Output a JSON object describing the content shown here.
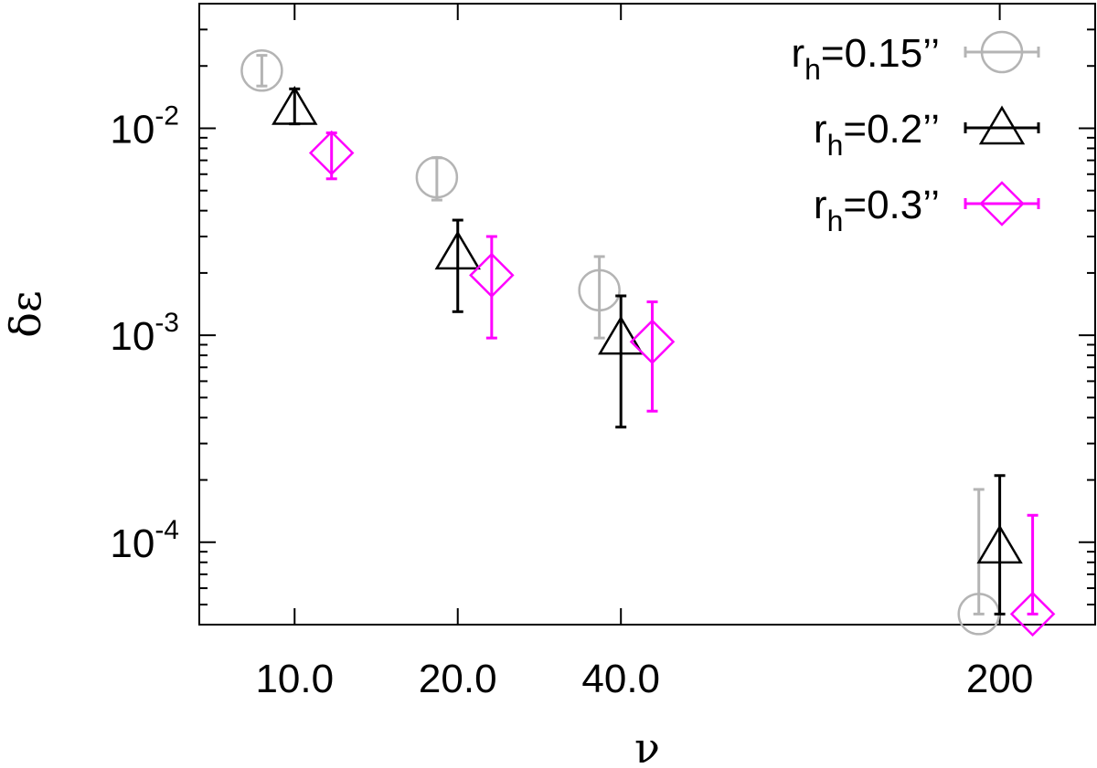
{
  "chart_data": {
    "type": "scatter",
    "xlabel": "ν",
    "ylabel": "δε",
    "x_scale": "log",
    "y_scale": "log",
    "x_categories": [
      "10.0",
      "20.0",
      "40.0",
      "200"
    ],
    "x_tick_values": [
      10,
      20,
      40,
      200
    ],
    "xlim": [
      6.67,
      300
    ],
    "ylim": [
      4e-05,
      0.04
    ],
    "y_ticks": [
      {
        "value": 0.01,
        "base": "10",
        "exp": "-2"
      },
      {
        "value": 0.001,
        "base": "10",
        "exp": "-3"
      },
      {
        "value": 0.0001,
        "base": "10",
        "exp": "-4"
      }
    ],
    "grid": false,
    "legend_position": "top-right",
    "series": [
      {
        "name_main": "r",
        "name_sub": "h",
        "name_rest": "=0.15’’",
        "marker": "circle",
        "color": "#b4b4b4",
        "points": [
          {
            "x": 8.7,
            "y": 0.019,
            "ylow": 0.016,
            "yhigh": 0.0225
          },
          {
            "x": 18.3,
            "y": 0.0058,
            "ylow": 0.0045,
            "yhigh": 0.0072
          },
          {
            "x": 36.5,
            "y": 0.00165,
            "ylow": 0.00097,
            "yhigh": 0.0024
          },
          {
            "x": 183,
            "y": 4.5e-05,
            "ylow": 4.5e-05,
            "yhigh": 0.00018
          }
        ]
      },
      {
        "name_main": "r",
        "name_sub": "h",
        "name_rest": "=0.2’’",
        "marker": "triangle",
        "color": "#000000",
        "points": [
          {
            "x": 10,
            "y": 0.0125,
            "ylow": 0.0105,
            "yhigh": 0.0155
          },
          {
            "x": 20,
            "y": 0.0025,
            "ylow": 0.0013,
            "yhigh": 0.0036
          },
          {
            "x": 40,
            "y": 0.00097,
            "ylow": 0.00036,
            "yhigh": 0.00155
          },
          {
            "x": 200,
            "y": 9.5e-05,
            "ylow": 4.5e-05,
            "yhigh": 0.00021
          }
        ]
      },
      {
        "name_main": "r",
        "name_sub": "h",
        "name_rest": "=0.3’’",
        "marker": "diamond",
        "color": "#ff00ff",
        "points": [
          {
            "x": 11.7,
            "y": 0.0076,
            "ylow": 0.0057,
            "yhigh": 0.0095
          },
          {
            "x": 23.1,
            "y": 0.00195,
            "ylow": 0.00097,
            "yhigh": 0.003
          },
          {
            "x": 45.7,
            "y": 0.00093,
            "ylow": 0.00043,
            "yhigh": 0.00145
          },
          {
            "x": 230,
            "y": 4.5e-05,
            "ylow": 4.5e-05,
            "yhigh": 0.000135
          }
        ]
      }
    ]
  }
}
